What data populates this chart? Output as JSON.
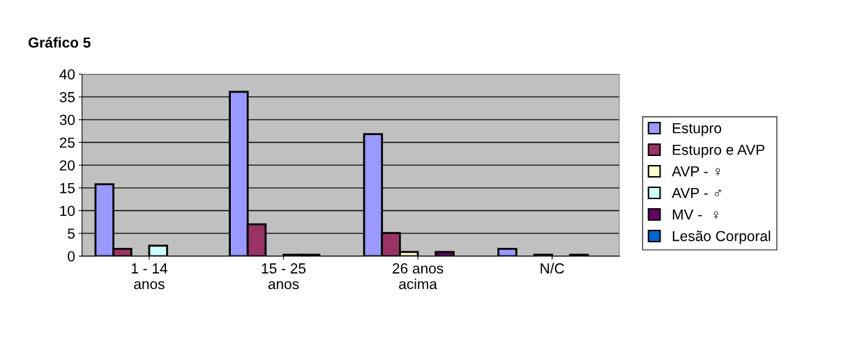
{
  "chart_data": {
    "type": "bar",
    "title": "Gráfico 5",
    "categories": [
      "1 - 14\nanos",
      "15 - 25\nanos",
      "26 anos\nacima",
      "N/C"
    ],
    "series": [
      {
        "name": "Estupro",
        "color": "#9999ff",
        "values": [
          15.8,
          36.1,
          26.8,
          1.6
        ]
      },
      {
        "name": "Estupro e AVP",
        "color": "#993366",
        "values": [
          1.6,
          7.0,
          5.1,
          null
        ]
      },
      {
        "name": "AVP - ♀",
        "color": "#ffffcc",
        "values": [
          null,
          null,
          0.9,
          0.3
        ]
      },
      {
        "name": "AVP - ♂",
        "color": "#ccffff",
        "values": [
          2.3,
          0.3,
          null,
          null
        ]
      },
      {
        "name": "MV -  ♀",
        "color": "#660066",
        "values": [
          null,
          0.3,
          0.9,
          0.3
        ]
      },
      {
        "name": "Lesão Corporal",
        "color": "#0066cc",
        "values": [
          null,
          null,
          null,
          null
        ]
      }
    ],
    "ylim": [
      0,
      40
    ],
    "yticks": [
      0,
      5,
      10,
      15,
      20,
      25,
      30,
      35,
      40
    ],
    "grid": "y",
    "legend": "right"
  }
}
